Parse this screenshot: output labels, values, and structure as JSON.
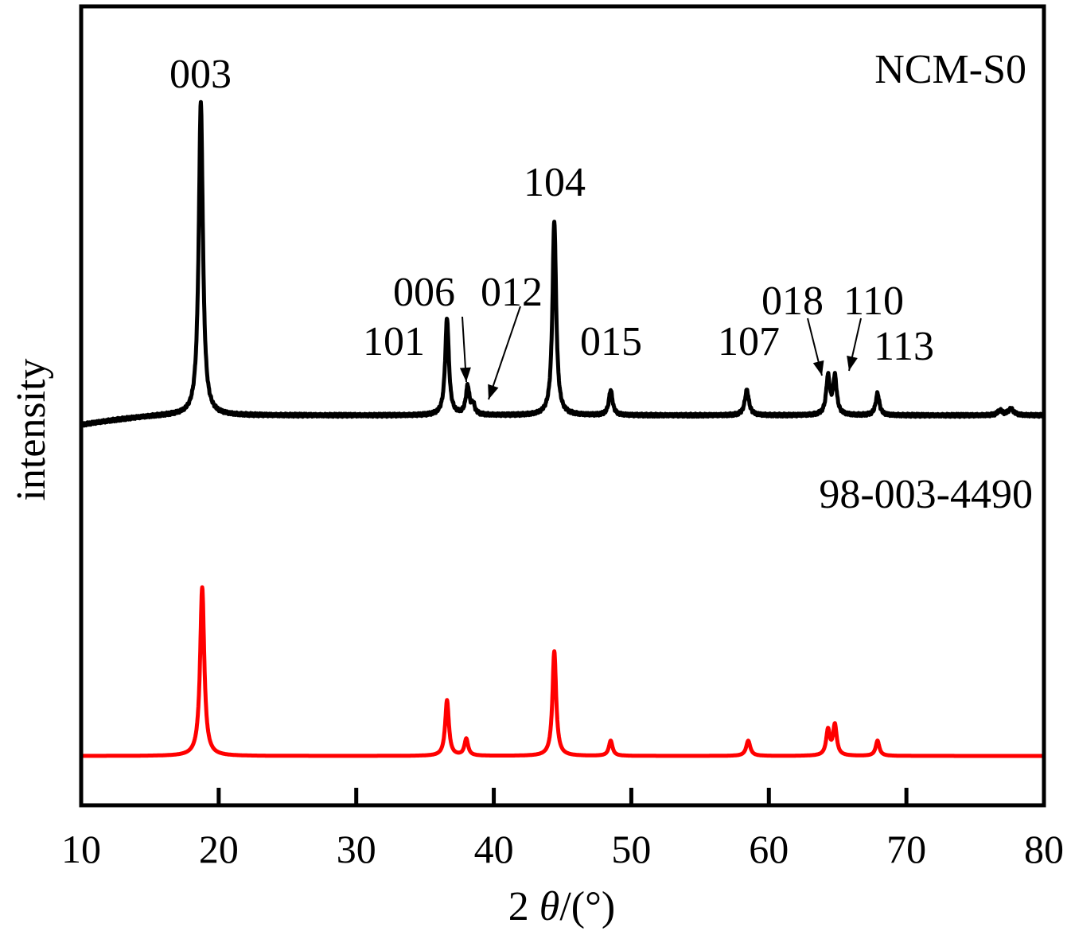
{
  "chart_data": {
    "type": "line",
    "xlabel_prefix": "2 ",
    "xlabel_symbol": "θ",
    "xlabel_suffix": "/(°)",
    "ylabel": "intensity",
    "xlim": [
      10,
      80
    ],
    "x_ticks": [
      10,
      20,
      30,
      40,
      50,
      60,
      70,
      80
    ],
    "y_ticks_shown": false,
    "grid": false,
    "colors": {
      "measured": "#000000",
      "reference": "#ff0000"
    },
    "series": [
      {
        "name": "NCM-S0",
        "baseline": 0,
        "peaks": [
          {
            "x": 18.7,
            "y": 100,
            "width": 0.18
          },
          {
            "x": 36.6,
            "y": 31,
            "width": 0.16
          },
          {
            "x": 38.1,
            "y": 9,
            "width": 0.16
          },
          {
            "x": 38.5,
            "y": 3,
            "width": 0.14
          },
          {
            "x": 44.4,
            "y": 62,
            "width": 0.16
          },
          {
            "x": 48.5,
            "y": 8,
            "width": 0.16
          },
          {
            "x": 58.4,
            "y": 8,
            "width": 0.18
          },
          {
            "x": 64.3,
            "y": 12,
            "width": 0.16
          },
          {
            "x": 64.8,
            "y": 12,
            "width": 0.16
          },
          {
            "x": 67.9,
            "y": 7,
            "width": 0.16
          },
          {
            "x": 76.8,
            "y": 1.5,
            "width": 0.2
          },
          {
            "x": 77.6,
            "y": 2,
            "width": 0.25
          }
        ]
      },
      {
        "name": "98-003-4490",
        "baseline": 0,
        "peaks": [
          {
            "x": 18.8,
            "y": 100,
            "width": 0.18
          },
          {
            "x": 36.6,
            "y": 33,
            "width": 0.16
          },
          {
            "x": 38.0,
            "y": 10,
            "width": 0.16
          },
          {
            "x": 44.4,
            "y": 62,
            "width": 0.16
          },
          {
            "x": 48.5,
            "y": 9,
            "width": 0.16
          },
          {
            "x": 58.5,
            "y": 9,
            "width": 0.18
          },
          {
            "x": 64.3,
            "y": 15,
            "width": 0.16
          },
          {
            "x": 64.8,
            "y": 18,
            "width": 0.16
          },
          {
            "x": 67.9,
            "y": 9,
            "width": 0.16
          }
        ]
      }
    ],
    "peak_labels": [
      {
        "text": "003",
        "x": 18.7
      },
      {
        "text": "101",
        "x": 36.6
      },
      {
        "text": "006",
        "x": 38.1,
        "arrow": true
      },
      {
        "text": "012",
        "x": 38.5,
        "arrow": true
      },
      {
        "text": "104",
        "x": 44.4
      },
      {
        "text": "015",
        "x": 48.5
      },
      {
        "text": "107",
        "x": 58.4
      },
      {
        "text": "018",
        "x": 64.3,
        "arrow": true
      },
      {
        "text": "110",
        "x": 64.8,
        "arrow": true
      },
      {
        "text": "113",
        "x": 67.9
      }
    ]
  }
}
